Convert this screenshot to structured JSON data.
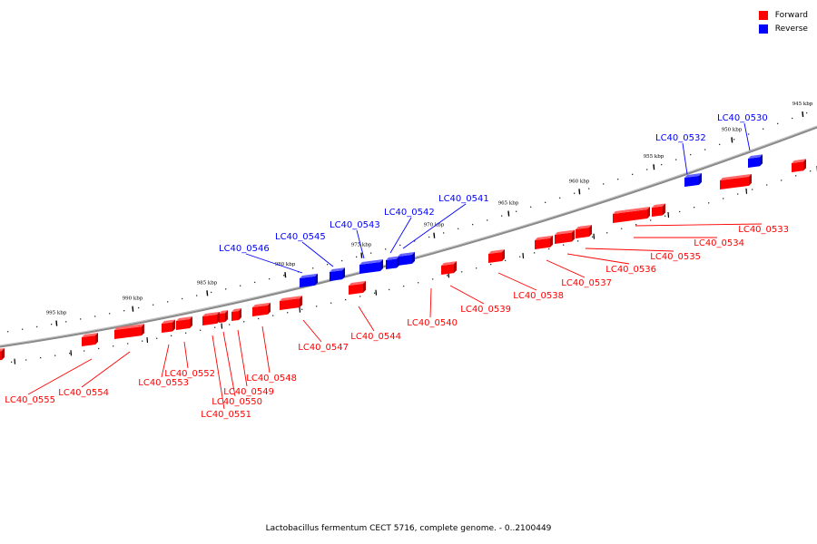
{
  "legend": {
    "forward_label": "Forward",
    "reverse_label": "Reverse",
    "forward_color": "#ff0000",
    "reverse_color": "#0000ff"
  },
  "caption": "Lactobacillus fermentum CECT 5716, complete genome. - 0..2100449",
  "ticks": [
    "945 kbp",
    "950 kbp",
    "955 kbp",
    "960 kbp",
    "965 kbp",
    "970 kbp",
    "975 kbp",
    "980 kbp",
    "985 kbp",
    "990 kbp",
    "995 kbp"
  ],
  "genes": [
    {
      "name": "LC40_0530",
      "strand": "reverse"
    },
    {
      "name": "LC40_0532",
      "strand": "reverse"
    },
    {
      "name": "LC40_0533",
      "strand": "forward"
    },
    {
      "name": "LC40_0534",
      "strand": "forward"
    },
    {
      "name": "LC40_0535",
      "strand": "forward"
    },
    {
      "name": "LC40_0536",
      "strand": "forward"
    },
    {
      "name": "LC40_0537",
      "strand": "forward"
    },
    {
      "name": "LC40_0538",
      "strand": "forward"
    },
    {
      "name": "LC40_0539",
      "strand": "forward"
    },
    {
      "name": "LC40_0540",
      "strand": "forward"
    },
    {
      "name": "LC40_0541",
      "strand": "reverse"
    },
    {
      "name": "LC40_0542",
      "strand": "reverse"
    },
    {
      "name": "LC40_0543",
      "strand": "reverse"
    },
    {
      "name": "LC40_0544",
      "strand": "forward"
    },
    {
      "name": "LC40_0545",
      "strand": "reverse"
    },
    {
      "name": "LC40_0546",
      "strand": "reverse"
    },
    {
      "name": "LC40_0547",
      "strand": "forward"
    },
    {
      "name": "LC40_0548",
      "strand": "forward"
    },
    {
      "name": "LC40_0549",
      "strand": "forward"
    },
    {
      "name": "LC40_0550",
      "strand": "forward"
    },
    {
      "name": "LC40_0551",
      "strand": "forward"
    },
    {
      "name": "LC40_0552",
      "strand": "forward"
    },
    {
      "name": "LC40_0553",
      "strand": "forward"
    },
    {
      "name": "LC40_0554",
      "strand": "forward"
    },
    {
      "name": "LC40_0555",
      "strand": "forward"
    }
  ]
}
